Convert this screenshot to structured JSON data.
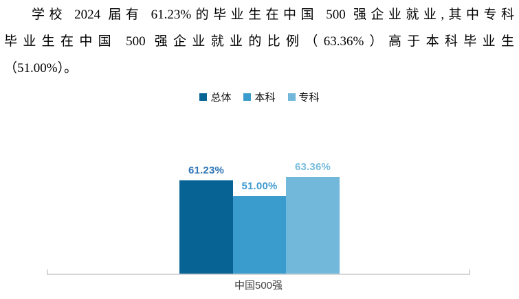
{
  "paragraph": {
    "lines": [
      "学校 2024 届有 61.23%的毕业生在中国 500 强企业就业,其中专科",
      "毕业生在中国 500 强企业就业的比例（63.36%）高于本科毕业生",
      "（51.00%）。"
    ]
  },
  "chart_data": {
    "type": "bar",
    "title": "",
    "categories": [
      "中国500强"
    ],
    "series": [
      {
        "name": "总体",
        "values": [
          61.23
        ],
        "data_label": "61.23%",
        "color": "#066394",
        "label_color": "#2e74b5"
      },
      {
        "name": "本科",
        "values": [
          51.0
        ],
        "data_label": "51.00%",
        "color": "#3a9ccd",
        "label_color": "#419cd1"
      },
      {
        "name": "专科",
        "values": [
          63.36
        ],
        "data_label": "63.36%",
        "color": "#72b8da",
        "label_color": "#76bcde"
      }
    ],
    "xlabel": "中国500强",
    "ylabel": "",
    "legend_position": "top",
    "legend": [
      "总体",
      "本科",
      "专科"
    ],
    "data_labels_visible": true,
    "value_axis_visible": false,
    "grid": false,
    "axis_color": "#d6d6d6"
  }
}
